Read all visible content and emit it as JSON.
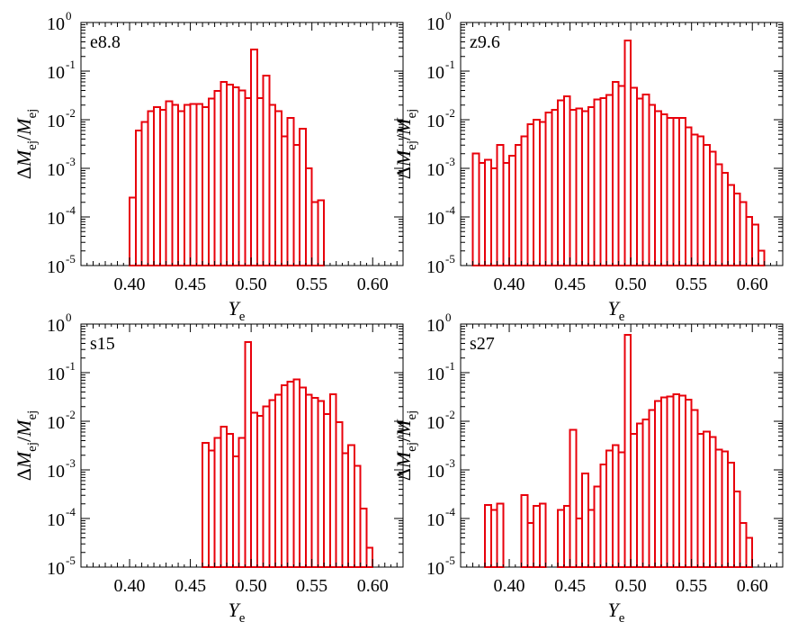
{
  "chart_data": [
    {
      "type": "bar",
      "label": "e8.8",
      "xlabel_main": "Y",
      "xlabel_sub": "e",
      "ylabel": {
        "delta": "Δ",
        "m1": "M",
        "sub1": "ej",
        "slash": "/",
        "m2": "M",
        "sub2": "ej"
      },
      "xlim": [
        0.36,
        0.625
      ],
      "ylim": [
        1e-05,
        1
      ],
      "yscale": "log",
      "bin_width": 0.005,
      "xticks": [
        0.4,
        0.45,
        0.5,
        0.55,
        0.6
      ],
      "xtick_labels": [
        "0.40",
        "0.45",
        "0.50",
        "0.55",
        "0.60"
      ],
      "yticks": [
        {
          "base": "10",
          "exp": "-5"
        },
        {
          "base": "10",
          "exp": "-4"
        },
        {
          "base": "10",
          "exp": "-3"
        },
        {
          "base": "10",
          "exp": "-2"
        },
        {
          "base": "10",
          "exp": "-1"
        },
        {
          "base": "10",
          "exp": "0"
        }
      ],
      "x": [
        0.4025,
        0.4075,
        0.4125,
        0.4175,
        0.4225,
        0.4275,
        0.4325,
        0.4375,
        0.4425,
        0.4475,
        0.4525,
        0.4575,
        0.4625,
        0.4675,
        0.4725,
        0.4775,
        0.4825,
        0.4875,
        0.4925,
        0.4975,
        0.5025,
        0.5075,
        0.5125,
        0.5175,
        0.5225,
        0.5275,
        0.5325,
        0.5375,
        0.5425,
        0.5475,
        0.5525,
        0.5575
      ],
      "values": [
        0.00025,
        0.006,
        0.009,
        0.015,
        0.018,
        0.016,
        0.024,
        0.02,
        0.015,
        0.02,
        0.021,
        0.021,
        0.018,
        0.027,
        0.039,
        0.06,
        0.053,
        0.046,
        0.04,
        0.028,
        0.28,
        0.028,
        0.08,
        0.02,
        0.015,
        0.0045,
        0.011,
        0.003,
        0.0065,
        0.001,
        0.0002,
        0.00022
      ]
    },
    {
      "type": "bar",
      "label": "z9.6",
      "xlabel_main": "Y",
      "xlabel_sub": "e",
      "ylabel": {
        "delta": "Δ",
        "m1": "M",
        "sub1": "ej",
        "slash": "/",
        "m2": "M",
        "sub2": "ej"
      },
      "xlim": [
        0.36,
        0.625
      ],
      "ylim": [
        1e-05,
        1
      ],
      "yscale": "log",
      "bin_width": 0.005,
      "xticks": [
        0.4,
        0.45,
        0.5,
        0.55,
        0.6
      ],
      "xtick_labels": [
        "0.40",
        "0.45",
        "0.50",
        "0.55",
        "0.60"
      ],
      "yticks": [
        {
          "base": "10",
          "exp": "-5"
        },
        {
          "base": "10",
          "exp": "-4"
        },
        {
          "base": "10",
          "exp": "-3"
        },
        {
          "base": "10",
          "exp": "-2"
        },
        {
          "base": "10",
          "exp": "-1"
        },
        {
          "base": "10",
          "exp": "0"
        }
      ],
      "x": [
        0.3725,
        0.3775,
        0.3825,
        0.3875,
        0.3925,
        0.3975,
        0.4025,
        0.4075,
        0.4125,
        0.4175,
        0.4225,
        0.4275,
        0.4325,
        0.4375,
        0.4425,
        0.4475,
        0.4525,
        0.4575,
        0.4625,
        0.4675,
        0.4725,
        0.4775,
        0.4825,
        0.4875,
        0.4925,
        0.4975,
        0.5025,
        0.5075,
        0.5125,
        0.5175,
        0.5225,
        0.5275,
        0.5325,
        0.5375,
        0.5425,
        0.5475,
        0.5525,
        0.5575,
        0.5625,
        0.5675,
        0.5725,
        0.5775,
        0.5825,
        0.5875,
        0.5925,
        0.5975,
        0.6025,
        0.6075
      ],
      "values": [
        0.002,
        0.0013,
        0.0015,
        0.001,
        0.003,
        0.0013,
        0.0018,
        0.003,
        0.0045,
        0.008,
        0.01,
        0.009,
        0.014,
        0.016,
        0.025,
        0.03,
        0.016,
        0.017,
        0.015,
        0.018,
        0.026,
        0.028,
        0.032,
        0.06,
        0.05,
        0.43,
        0.045,
        0.027,
        0.033,
        0.02,
        0.015,
        0.013,
        0.011,
        0.011,
        0.011,
        0.007,
        0.005,
        0.0045,
        0.003,
        0.0022,
        0.0012,
        0.0008,
        0.00045,
        0.0003,
        0.0002,
        0.0001,
        7e-05,
        2e-05
      ]
    },
    {
      "type": "bar",
      "label": "s15",
      "xlabel_main": "Y",
      "xlabel_sub": "e",
      "ylabel": {
        "delta": "Δ",
        "m1": "M",
        "sub1": "ej",
        "slash": "/",
        "m2": "M",
        "sub2": "ej"
      },
      "xlim": [
        0.36,
        0.625
      ],
      "ylim": [
        1e-05,
        1
      ],
      "yscale": "log",
      "bin_width": 0.005,
      "xticks": [
        0.4,
        0.45,
        0.5,
        0.55,
        0.6
      ],
      "xtick_labels": [
        "0.40",
        "0.45",
        "0.50",
        "0.55",
        "0.60"
      ],
      "yticks": [
        {
          "base": "10",
          "exp": "-5"
        },
        {
          "base": "10",
          "exp": "-4"
        },
        {
          "base": "10",
          "exp": "-3"
        },
        {
          "base": "10",
          "exp": "-2"
        },
        {
          "base": "10",
          "exp": "-1"
        },
        {
          "base": "10",
          "exp": "0"
        }
      ],
      "x": [
        0.4625,
        0.4675,
        0.4725,
        0.4775,
        0.4825,
        0.4875,
        0.4925,
        0.4975,
        0.5025,
        0.5075,
        0.5125,
        0.5175,
        0.5225,
        0.5275,
        0.5325,
        0.5375,
        0.5425,
        0.5475,
        0.5525,
        0.5575,
        0.5625,
        0.5675,
        0.5725,
        0.5775,
        0.5825,
        0.5875,
        0.5925,
        0.5975
      ],
      "values": [
        0.0036,
        0.0025,
        0.0045,
        0.0078,
        0.0055,
        0.0019,
        0.0045,
        0.43,
        0.015,
        0.013,
        0.02,
        0.027,
        0.035,
        0.055,
        0.065,
        0.073,
        0.05,
        0.035,
        0.03,
        0.026,
        0.014,
        0.036,
        0.0095,
        0.0022,
        0.0032,
        0.0012,
        0.00016,
        2.5e-05
      ]
    },
    {
      "type": "bar",
      "label": "s27",
      "xlabel_main": "Y",
      "xlabel_sub": "e",
      "ylabel": {
        "delta": "Δ",
        "m1": "M",
        "sub1": "ej",
        "slash": "/",
        "m2": "M",
        "sub2": "ej"
      },
      "xlim": [
        0.36,
        0.625
      ],
      "ylim": [
        1e-05,
        1
      ],
      "yscale": "log",
      "bin_width": 0.005,
      "xticks": [
        0.4,
        0.45,
        0.5,
        0.55,
        0.6
      ],
      "xtick_labels": [
        "0.40",
        "0.45",
        "0.50",
        "0.55",
        "0.60"
      ],
      "yticks": [
        {
          "base": "10",
          "exp": "-5"
        },
        {
          "base": "10",
          "exp": "-4"
        },
        {
          "base": "10",
          "exp": "-3"
        },
        {
          "base": "10",
          "exp": "-2"
        },
        {
          "base": "10",
          "exp": "-1"
        },
        {
          "base": "10",
          "exp": "0"
        }
      ],
      "x": [
        0.3825,
        0.3875,
        0.3925,
        0.3975,
        0.4025,
        0.4075,
        0.4125,
        0.4175,
        0.4225,
        0.4275,
        0.4325,
        0.4375,
        0.4425,
        0.4475,
        0.4525,
        0.4575,
        0.4625,
        0.4675,
        0.4725,
        0.4775,
        0.4825,
        0.4875,
        0.4925,
        0.4975,
        0.5025,
        0.5075,
        0.5125,
        0.5175,
        0.5225,
        0.5275,
        0.5325,
        0.5375,
        0.5425,
        0.5475,
        0.5525,
        0.5575,
        0.5625,
        0.5675,
        0.5725,
        0.5775,
        0.5825,
        0.5875,
        0.5925,
        0.5975
      ],
      "values": [
        0.00019,
        0.00015,
        0.0002,
        0,
        0,
        0,
        0.0003,
        8e-05,
        0.00018,
        0.0002,
        0,
        0,
        0.00015,
        0.00018,
        0.0066,
        0.0001,
        0.00085,
        0.00015,
        0.00045,
        0.0013,
        0.0025,
        0.0032,
        0.0023,
        0.6,
        0.0055,
        0.009,
        0.011,
        0.017,
        0.026,
        0.031,
        0.032,
        0.036,
        0.034,
        0.028,
        0.017,
        0.0055,
        0.0061,
        0.0047,
        0.0026,
        0.0024,
        0.0014,
        0.00036,
        8e-05,
        4e-05
      ]
    }
  ]
}
